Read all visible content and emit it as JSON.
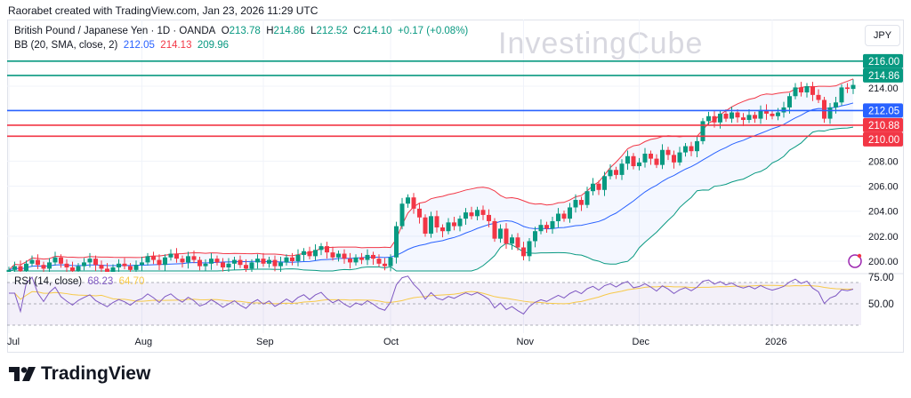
{
  "credit": "Raorabet created with TradingView.com, Jan 23, 2026 11:29 UTC",
  "legend": {
    "symbol": "British Pound / Japanese Yen · 1D · OANDA",
    "o_label": "O",
    "o": "213.78",
    "h_label": "H",
    "h": "214.86",
    "l_label": "L",
    "l": "212.52",
    "c_label": "C",
    "c": "214.10",
    "change": "+0.17 (+0.08%)",
    "bb_label": "BB (20, SMA, close, 2)",
    "bb_mid": "212.05",
    "bb_up": "214.13",
    "bb_low": "209.96",
    "rsi_label": "RSI (14, close)",
    "rsi": "68.23",
    "rsi_ma": "64.70"
  },
  "currency": "JPY",
  "watermark": "InvestingCube",
  "brand": "TradingView",
  "colors": {
    "up": "#089981",
    "down": "#f23645",
    "bb_mid": "#2962ff",
    "bb_up": "#f23645",
    "bb_low": "#089981",
    "rsi": "#7e57c2",
    "rsi_ma": "#f7c948"
  },
  "chart_data": {
    "type": "candlestick",
    "title": "British Pound / Japanese Yen · 1D · OANDA",
    "x_ticks": [
      {
        "label": "Jul",
        "index": 0
      },
      {
        "label": "Aug",
        "index": 23
      },
      {
        "label": "Sep",
        "index": 44
      },
      {
        "label": "Oct",
        "index": 66
      },
      {
        "label": "Nov",
        "index": 89
      },
      {
        "label": "Dec",
        "index": 109
      },
      {
        "label": "2026",
        "index": 132
      }
    ],
    "y_ticks": [
      "200.00",
      "202.00",
      "204.00",
      "206.00",
      "208.00",
      "214.00"
    ],
    "ylim": [
      199,
      216.5
    ],
    "rsi_ticks": [
      "75.00",
      "50.00"
    ],
    "closes": [
      199.3,
      199.6,
      199.2,
      199.8,
      200.1,
      199.7,
      199.4,
      199.9,
      200.3,
      199.8,
      199.5,
      199.2,
      199.6,
      199.9,
      200.2,
      199.7,
      199.4,
      199.1,
      199.5,
      199.8,
      199.6,
      199.3,
      199.7,
      199.9,
      200.4,
      200.1,
      199.7,
      200.3,
      200.6,
      200.2,
      199.9,
      200.4,
      200.1,
      199.6,
      199.8,
      200.2,
      199.9,
      199.5,
      199.8,
      200.1,
      199.7,
      199.4,
      199.9,
      200.2,
      199.8,
      200.1,
      199.6,
      199.9,
      200.3,
      200.0,
      200.5,
      200.8,
      200.4,
      200.9,
      201.2,
      200.7,
      200.3,
      200.6,
      200.2,
      199.9,
      200.3,
      200.1,
      200.5,
      200.2,
      199.8,
      199.6,
      200.3,
      202.8,
      204.6,
      205.1,
      204.2,
      203.5,
      202.2,
      203.6,
      202.7,
      202.4,
      203.1,
      202.8,
      203.4,
      203.9,
      203.6,
      204.1,
      203.7,
      203.2,
      201.8,
      202.6,
      201.4,
      201.9,
      201.1,
      200.4,
      201.6,
      202.4,
      202.9,
      202.6,
      203.2,
      203.8,
      203.4,
      204.3,
      204.9,
      204.5,
      205.6,
      206.2,
      205.7,
      206.8,
      207.3,
      206.9,
      207.8,
      208.4,
      207.6,
      207.9,
      208.6,
      208.2,
      207.7,
      208.9,
      208.5,
      207.9,
      208.7,
      209.2,
      208.8,
      209.6,
      211.2,
      211.6,
      211.1,
      211.8,
      211.4,
      211.9,
      211.5,
      211.3,
      211.7,
      211.4,
      212.1,
      211.8,
      211.6,
      211.9,
      212.3,
      213.2,
      213.9,
      213.5,
      214.0,
      213.3,
      212.9,
      211.4,
      212.3,
      212.7,
      213.9,
      213.78,
      214.1
    ],
    "hlines": [
      {
        "value": "216.00",
        "color": "#089981"
      },
      {
        "value": "214.86",
        "color": "#089981"
      },
      {
        "value": "212.05",
        "color": "#2962ff"
      },
      {
        "value": "210.88",
        "color": "#f23645"
      },
      {
        "value": "210.00",
        "color": "#f23645"
      }
    ]
  }
}
